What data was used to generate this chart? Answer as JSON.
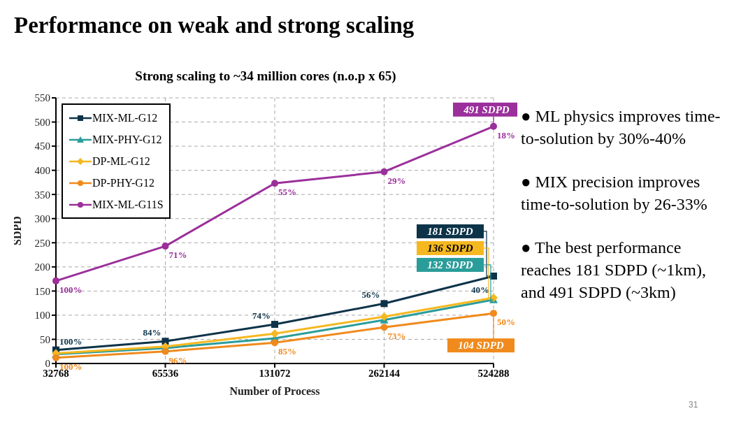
{
  "chart_data": {
    "type": "line",
    "title": "Performance on weak and strong scaling",
    "subtitle": "Strong scaling to ~34 million cores (n.o.p x 65)",
    "xlabel": "Number of Process",
    "ylabel": "SDPD",
    "categories": [
      "32768",
      "65536",
      "131072",
      "262144",
      "524288"
    ],
    "series": [
      {
        "name": "MIX-ML-G12",
        "color": "#0d3349",
        "marker": "square",
        "values": [
          28,
          46,
          81,
          124,
          181
        ]
      },
      {
        "name": "MIX-PHY-G12",
        "color": "#2a9d9a",
        "marker": "triangle",
        "values": [
          19,
          32,
          52,
          90,
          132
        ]
      },
      {
        "name": "DP-ML-G12",
        "color": "#f5b820",
        "marker": "diamond",
        "values": [
          21,
          35,
          62,
          97,
          136
        ]
      },
      {
        "name": "DP-PHY-G12",
        "color": "#f08a1c",
        "marker": "circle",
        "values": [
          12,
          25,
          43,
          75,
          104
        ]
      },
      {
        "name": "MIX-ML-G11S",
        "color": "#9b2f9b",
        "marker": "circle",
        "values": [
          171,
          243,
          373,
          397,
          491
        ]
      }
    ],
    "ylim": [
      0,
      550
    ],
    "yticks": [
      0,
      50,
      100,
      150,
      200,
      250,
      300,
      350,
      400,
      450,
      500,
      550
    ],
    "grid": true,
    "legend": "top left",
    "line_style": "solid",
    "annotations": [
      {
        "text": "491 SDPD",
        "x": "524288",
        "y": 491
      },
      {
        "text": "181 SDPD",
        "x": "524288",
        "y": 181
      },
      {
        "text": "136 SDPD",
        "x": "524288",
        "y": 136
      },
      {
        "text": "132 SDPD",
        "x": "524288",
        "y": 132
      },
      {
        "text": "104 SDPD",
        "x": "524288",
        "y": 104
      },
      {
        "text": "100%",
        "x": "32768",
        "y": 28
      },
      {
        "text": "84%",
        "x": "65536",
        "y": 46
      },
      {
        "text": "74%",
        "x": "131072",
        "y": 81
      },
      {
        "text": "56%",
        "x": "262144",
        "y": 124
      },
      {
        "text": "40%",
        "x": "524288",
        "y": 181
      },
      {
        "text": "100%",
        "x": "32768",
        "y": 12
      },
      {
        "text": "96%",
        "x": "65536",
        "y": 25
      },
      {
        "text": "85%",
        "x": "131072",
        "y": 43
      },
      {
        "text": "73%",
        "x": "262144",
        "y": 75
      },
      {
        "text": "50%",
        "x": "524288",
        "y": 104
      },
      {
        "text": "100%",
        "x": "32768",
        "y": 171
      },
      {
        "text": "71%",
        "x": "65536",
        "y": 243
      },
      {
        "text": "55%",
        "x": "131072",
        "y": 373
      },
      {
        "text": "29%",
        "x": "262144",
        "y": 397
      },
      {
        "text": "18%",
        "x": "524288",
        "y": 491
      },
      "● ML physics improves time-to-solution by 30%-40%",
      "● MIX precision improves time-to-solution by 26-33%",
      "● The best performance reaches 181 SDPD (~1km), and 491 SDPD (~3km)",
      "31"
    ]
  }
}
